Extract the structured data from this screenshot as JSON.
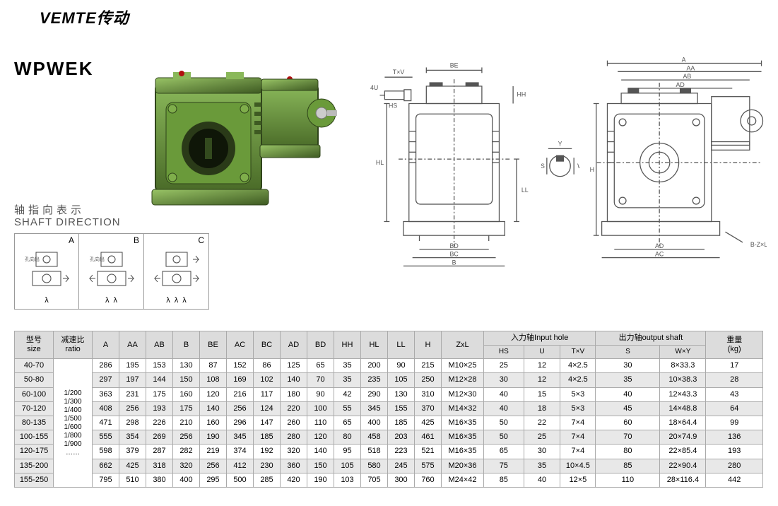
{
  "brand": "VEMTE传动",
  "model": "WPWEK",
  "shaft_label_cn": "轴指向表示",
  "shaft_label_en": "SHAFT DIRECTION",
  "shaft_boxes": [
    {
      "letter": "A",
      "side_text": "孔向出",
      "lambdas": [
        "λ"
      ]
    },
    {
      "letter": "B",
      "side_text": "孔向出",
      "lambdas": [
        "λ",
        "λ"
      ]
    },
    {
      "letter": "C",
      "side_text": "",
      "lambdas": [
        "λ",
        "λ",
        "λ"
      ]
    }
  ],
  "drawing_labels": {
    "front": [
      "BE",
      "T×V",
      "4U",
      "HS",
      "HH",
      "HL",
      "LL",
      "BD",
      "BC",
      "B"
    ],
    "mid": [
      "Y",
      "øS",
      "W"
    ],
    "side": [
      "A",
      "AA",
      "AB",
      "AD",
      "H",
      "B-Z×L",
      "AD",
      "AC"
    ]
  },
  "table": {
    "header_top": {
      "size": "型号\nsize",
      "ratio": "减速比\nratio",
      "cols": [
        "A",
        "AA",
        "AB",
        "B",
        "BE",
        "AC",
        "BC",
        "AD",
        "BD",
        "HH",
        "HL",
        "LL",
        "H",
        "ZxL"
      ],
      "input_group": "入力轴Input hole",
      "output_group": "出力轴output shaft",
      "weight": "重量\n(kg)"
    },
    "header_sub": {
      "input": [
        "HS",
        "U",
        "T×V"
      ],
      "output": [
        "S",
        "W×Y"
      ]
    },
    "ratio_text": "1/200\n1/300\n1/400\n1/500\n1/600\n1/800\n1/900\n……",
    "rows": [
      {
        "size": "40-70",
        "gray": false,
        "v": [
          "286",
          "195",
          "153",
          "130",
          "87",
          "152",
          "86",
          "125",
          "65",
          "35",
          "200",
          "90",
          "215",
          "M10×25",
          "25",
          "12",
          "4×2.5",
          "30",
          "8×33.3",
          "17"
        ]
      },
      {
        "size": "50-80",
        "gray": true,
        "v": [
          "297",
          "197",
          "144",
          "150",
          "108",
          "169",
          "102",
          "140",
          "70",
          "35",
          "235",
          "105",
          "250",
          "M12×28",
          "30",
          "12",
          "4×2.5",
          "35",
          "10×38.3",
          "28"
        ]
      },
      {
        "size": "60-100",
        "gray": false,
        "v": [
          "363",
          "231",
          "175",
          "160",
          "120",
          "216",
          "117",
          "180",
          "90",
          "42",
          "290",
          "130",
          "310",
          "M12×30",
          "40",
          "15",
          "5×3",
          "40",
          "12×43.3",
          "43"
        ]
      },
      {
        "size": "70-120",
        "gray": true,
        "v": [
          "408",
          "256",
          "193",
          "175",
          "140",
          "256",
          "124",
          "220",
          "100",
          "55",
          "345",
          "155",
          "370",
          "M14×32",
          "40",
          "18",
          "5×3",
          "45",
          "14×48.8",
          "64"
        ]
      },
      {
        "size": "80-135",
        "gray": false,
        "v": [
          "471",
          "298",
          "226",
          "210",
          "160",
          "296",
          "147",
          "260",
          "110",
          "65",
          "400",
          "185",
          "425",
          "M16×35",
          "50",
          "22",
          "7×4",
          "60",
          "18×64.4",
          "99"
        ]
      },
      {
        "size": "100-155",
        "gray": true,
        "v": [
          "555",
          "354",
          "269",
          "256",
          "190",
          "345",
          "185",
          "280",
          "120",
          "80",
          "458",
          "203",
          "461",
          "M16×35",
          "50",
          "25",
          "7×4",
          "70",
          "20×74.9",
          "136"
        ]
      },
      {
        "size": "120-175",
        "gray": false,
        "v": [
          "598",
          "379",
          "287",
          "282",
          "219",
          "374",
          "192",
          "320",
          "140",
          "95",
          "518",
          "223",
          "521",
          "M16×35",
          "65",
          "30",
          "7×4",
          "80",
          "22×85.4",
          "193"
        ]
      },
      {
        "size": "135-200",
        "gray": true,
        "v": [
          "662",
          "425",
          "318",
          "320",
          "256",
          "412",
          "230",
          "360",
          "150",
          "105",
          "580",
          "245",
          "575",
          "M20×36",
          "75",
          "35",
          "10×4.5",
          "85",
          "22×90.4",
          "280"
        ]
      },
      {
        "size": "155-250",
        "gray": false,
        "v": [
          "795",
          "510",
          "380",
          "400",
          "295",
          "500",
          "285",
          "420",
          "190",
          "103",
          "705",
          "300",
          "760",
          "M24×42",
          "85",
          "40",
          "12×5",
          "110",
          "28×116.4",
          "442"
        ]
      }
    ]
  },
  "colors": {
    "gearbox_green": "#6a9a3a",
    "gearbox_dark": "#4a6b28",
    "drawing_line": "#555555",
    "table_header_bg": "#dcdcdc",
    "table_gray_bg": "#e8e8e8",
    "table_border": "#aaaaaa"
  }
}
